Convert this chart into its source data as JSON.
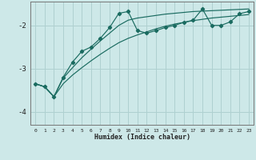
{
  "xlabel": "Humidex (Indice chaleur)",
  "bg_color": "#cde8e8",
  "grid_color": "#afd0d0",
  "line_color": "#1a6b60",
  "x": [
    0,
    1,
    2,
    3,
    4,
    5,
    6,
    7,
    8,
    9,
    10,
    11,
    12,
    13,
    14,
    15,
    16,
    17,
    18,
    19,
    20,
    21,
    22,
    23
  ],
  "y_data": [
    -3.35,
    -3.42,
    -3.65,
    -3.2,
    -2.85,
    -2.6,
    -2.5,
    -2.3,
    -2.05,
    -1.72,
    -1.68,
    -2.12,
    -2.18,
    -2.12,
    -2.05,
    -2.0,
    -1.93,
    -1.88,
    -1.62,
    -2.0,
    -2.0,
    -1.92,
    -1.73,
    -1.68
  ],
  "y_upper": [
    -3.35,
    -3.42,
    -3.65,
    -3.22,
    -2.98,
    -2.75,
    -2.55,
    -2.36,
    -2.18,
    -2.0,
    -1.88,
    -1.83,
    -1.8,
    -1.77,
    -1.74,
    -1.72,
    -1.7,
    -1.68,
    -1.67,
    -1.66,
    -1.65,
    -1.64,
    -1.63,
    -1.62
  ],
  "y_lower": [
    -3.35,
    -3.42,
    -3.65,
    -3.35,
    -3.15,
    -2.98,
    -2.82,
    -2.67,
    -2.53,
    -2.4,
    -2.3,
    -2.22,
    -2.15,
    -2.08,
    -2.02,
    -1.97,
    -1.93,
    -1.89,
    -1.86,
    -1.83,
    -1.81,
    -1.79,
    -1.77,
    -1.75
  ],
  "ylim": [
    -4.3,
    -1.45
  ],
  "yticks": [
    -4,
    -3,
    -2
  ],
  "xlim": [
    -0.5,
    23.5
  ],
  "xticks": [
    0,
    1,
    2,
    3,
    4,
    5,
    6,
    7,
    8,
    9,
    10,
    11,
    12,
    13,
    14,
    15,
    16,
    17,
    18,
    19,
    20,
    21,
    22,
    23
  ]
}
